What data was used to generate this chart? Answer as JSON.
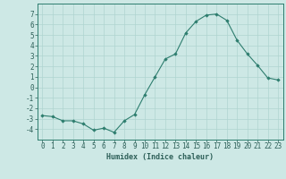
{
  "x": [
    0,
    1,
    2,
    3,
    4,
    5,
    6,
    7,
    8,
    9,
    10,
    11,
    12,
    13,
    14,
    15,
    16,
    17,
    18,
    19,
    20,
    21,
    22,
    23
  ],
  "y": [
    -2.7,
    -2.8,
    -3.2,
    -3.2,
    -3.5,
    -4.1,
    -3.9,
    -4.3,
    -3.2,
    -2.6,
    -0.7,
    1.0,
    2.7,
    3.2,
    5.2,
    6.3,
    6.9,
    7.0,
    6.4,
    4.5,
    3.2,
    2.1,
    0.9,
    0.7
  ],
  "xlabel": "Humidex (Indice chaleur)",
  "line_color": "#2d7d6e",
  "marker_color": "#2d7d6e",
  "bg_color": "#cde8e5",
  "grid_color": "#afd4d0",
  "tick_color": "#2d5f58",
  "ylim": [
    -5,
    8
  ],
  "xlim": [
    -0.5,
    23.5
  ],
  "yticks": [
    -4,
    -3,
    -2,
    -1,
    0,
    1,
    2,
    3,
    4,
    5,
    6,
    7
  ],
  "xticks": [
    0,
    1,
    2,
    3,
    4,
    5,
    6,
    7,
    8,
    9,
    10,
    11,
    12,
    13,
    14,
    15,
    16,
    17,
    18,
    19,
    20,
    21,
    22,
    23
  ],
  "spine_color": "#2d7d6e",
  "label_fontsize": 6.0,
  "tick_fontsize": 5.5
}
